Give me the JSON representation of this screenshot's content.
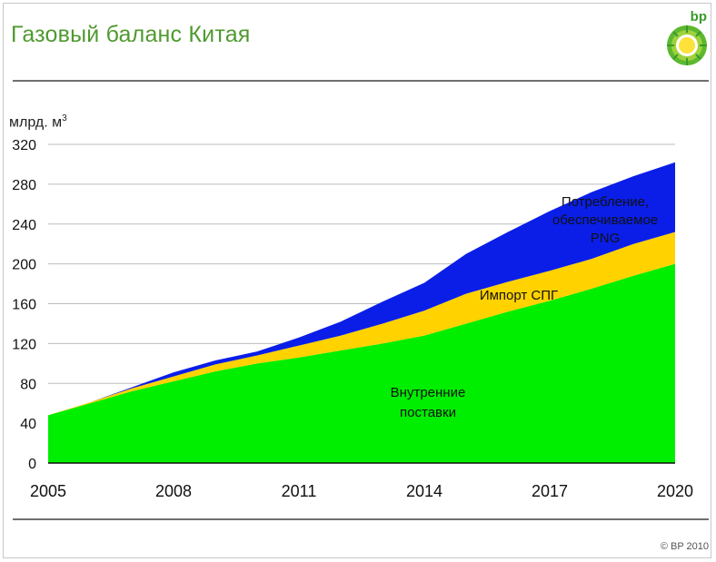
{
  "slide": {
    "title": "Газовый баланс Китая",
    "unit_label": "млрд. м",
    "unit_superscript": "3",
    "logo_text": "bp",
    "copyright": "© BP 2010"
  },
  "colors": {
    "title": "#4f9a2f",
    "domestic": "#00ee00",
    "lng": "#ffd200",
    "png": "#0a1ee8",
    "grid": "#bdbdbd"
  },
  "chart_data": {
    "type": "area",
    "stacked": true,
    "x": [
      2005,
      2006,
      2007,
      2008,
      2009,
      2010,
      2011,
      2012,
      2013,
      2014,
      2015,
      2016,
      2017,
      2018,
      2019,
      2020
    ],
    "series": [
      {
        "name": "Внутренние поставки",
        "label_lines": [
          "Внутренние",
          "поставки"
        ],
        "values": [
          48,
          60,
          72,
          82,
          92,
          100,
          106,
          113,
          120,
          128,
          140,
          152,
          163,
          175,
          188,
          200
        ]
      },
      {
        "name": "Импорт СПГ",
        "label_lines": [
          "Импорт СПГ"
        ],
        "values": [
          0,
          1,
          3,
          5,
          7,
          8,
          12,
          15,
          20,
          25,
          30,
          30,
          30,
          30,
          32,
          32
        ]
      },
      {
        "name": "Потребление, обеспечиваемое PNG",
        "label_lines": [
          "Потребление,",
          "обеспечиваемое",
          "PNG"
        ],
        "values": [
          0,
          0,
          1,
          4,
          4,
          4,
          8,
          14,
          22,
          28,
          40,
          50,
          60,
          67,
          68,
          70
        ]
      }
    ],
    "xticks": [
      "2005",
      "2008",
      "2011",
      "2014",
      "2017",
      "2020"
    ],
    "yticks": [
      "0",
      "40",
      "80",
      "120",
      "160",
      "200",
      "240",
      "280",
      "320"
    ],
    "ylim": [
      0,
      320
    ],
    "xlim": [
      2005,
      2020
    ],
    "grid": true,
    "legend": "inline labels"
  }
}
